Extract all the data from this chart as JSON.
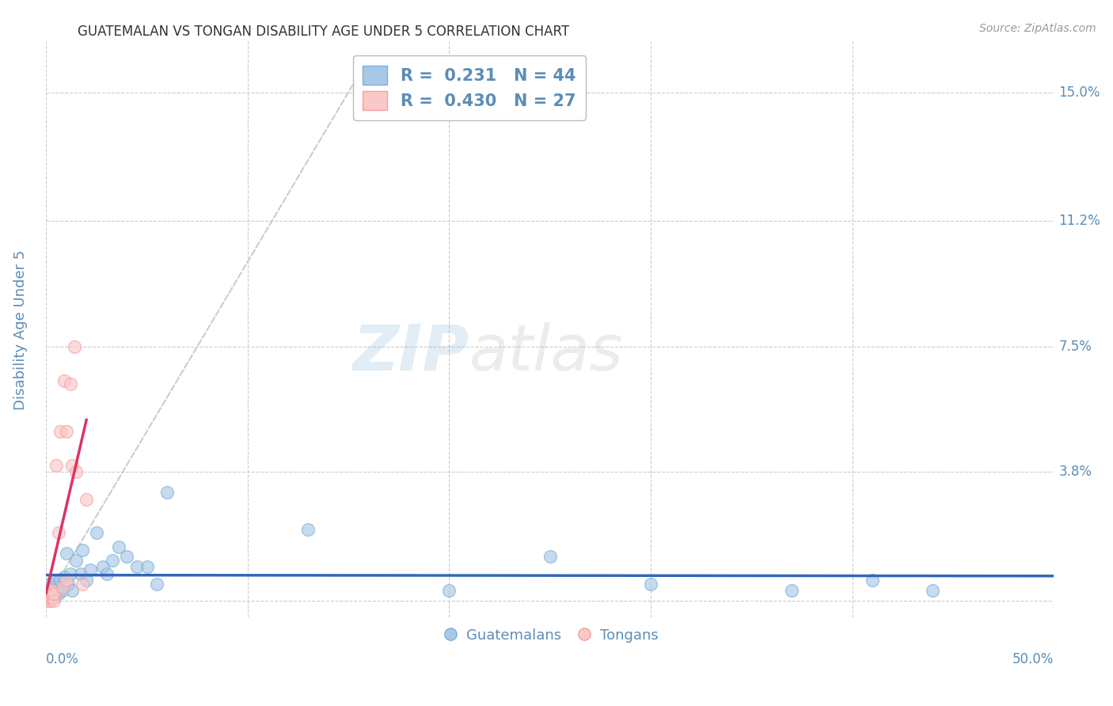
{
  "title": "GUATEMALAN VS TONGAN DISABILITY AGE UNDER 5 CORRELATION CHART",
  "source": "Source: ZipAtlas.com",
  "ylabel": "Disability Age Under 5",
  "ytick_values": [
    0.0,
    0.038,
    0.075,
    0.112,
    0.15
  ],
  "ytick_labels": [
    "0.0%",
    "3.8%",
    "7.5%",
    "11.2%",
    "15.0%"
  ],
  "xlim": [
    0.0,
    0.5
  ],
  "ylim": [
    -0.005,
    0.165
  ],
  "legend_blue_R": "0.231",
  "legend_blue_N": "44",
  "legend_pink_R": "0.430",
  "legend_pink_N": "27",
  "watermark_zip": "ZIP",
  "watermark_atlas": "atlas",
  "blue_color": "#7BAFD4",
  "blue_fill": "#A8C8E8",
  "pink_color": "#F4A0A0",
  "pink_fill": "#F9C8C8",
  "trendline_blue_color": "#3366BB",
  "trendline_pink_color": "#DD3366",
  "diagonal_color": "#CCCCCC",
  "grid_color": "#CCCCCC",
  "title_color": "#333333",
  "axis_label_color": "#5B8DB8",
  "source_color": "#999999",
  "guat_x": [
    0.0,
    0.001,
    0.001,
    0.001,
    0.002,
    0.002,
    0.002,
    0.003,
    0.003,
    0.004,
    0.004,
    0.005,
    0.005,
    0.006,
    0.006,
    0.007,
    0.008,
    0.009,
    0.01,
    0.011,
    0.012,
    0.013,
    0.015,
    0.017,
    0.018,
    0.02,
    0.022,
    0.025,
    0.028,
    0.03,
    0.033,
    0.036,
    0.04,
    0.045,
    0.05,
    0.055,
    0.06,
    0.13,
    0.2,
    0.25,
    0.3,
    0.37,
    0.41,
    0.44
  ],
  "guat_y": [
    0.002,
    0.001,
    0.003,
    0.004,
    0.001,
    0.003,
    0.005,
    0.002,
    0.004,
    0.001,
    0.005,
    0.003,
    0.006,
    0.002,
    0.004,
    0.006,
    0.003,
    0.007,
    0.014,
    0.005,
    0.008,
    0.003,
    0.012,
    0.008,
    0.015,
    0.006,
    0.009,
    0.02,
    0.01,
    0.008,
    0.012,
    0.016,
    0.013,
    0.01,
    0.01,
    0.005,
    0.032,
    0.021,
    0.003,
    0.013,
    0.005,
    0.003,
    0.006,
    0.003
  ],
  "tong_x": [
    0.0,
    0.0,
    0.001,
    0.001,
    0.001,
    0.002,
    0.002,
    0.002,
    0.002,
    0.003,
    0.003,
    0.003,
    0.004,
    0.004,
    0.005,
    0.006,
    0.007,
    0.008,
    0.009,
    0.01,
    0.01,
    0.012,
    0.013,
    0.014,
    0.015,
    0.018,
    0.02
  ],
  "tong_y": [
    0.002,
    0.003,
    0.0,
    0.001,
    0.002,
    0.0,
    0.001,
    0.002,
    0.003,
    0.001,
    0.002,
    0.003,
    0.0,
    0.002,
    0.04,
    0.02,
    0.05,
    0.004,
    0.065,
    0.006,
    0.05,
    0.064,
    0.04,
    0.075,
    0.038,
    0.005,
    0.03
  ]
}
